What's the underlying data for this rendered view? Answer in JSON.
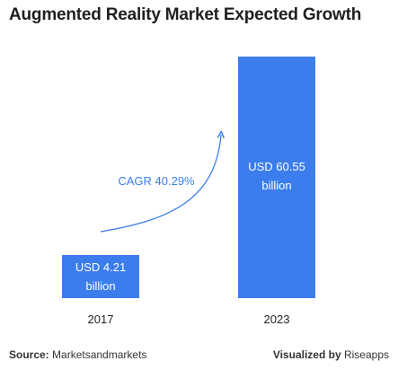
{
  "title": "Augmented Reality Market Expected Growth",
  "chart_data": {
    "type": "bar",
    "categories": [
      "2017",
      "2023"
    ],
    "values": [
      4.21,
      60.55
    ],
    "data_labels": [
      [
        "USD 4.21",
        "billion"
      ],
      [
        "USD 60.55",
        "billion"
      ]
    ],
    "unit": "USD billion",
    "ylim": [
      0,
      60.55
    ],
    "annotation": "CAGR 40.29%",
    "bar_color": "#3b7ded",
    "label_color": "#ffffff",
    "annotation_color": "#3b7ded",
    "grid": false
  },
  "footer": {
    "source_label": "Source:",
    "source_value": "Marketsandmarkets",
    "visualized_label": "Visualized by",
    "visualized_value": "Riseapps"
  }
}
